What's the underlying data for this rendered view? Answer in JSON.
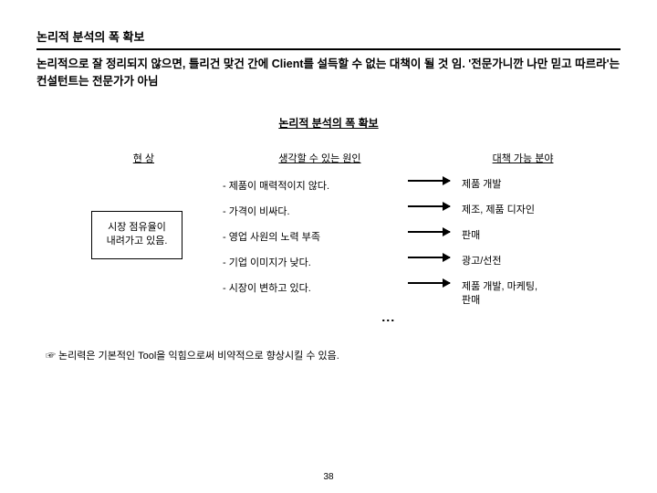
{
  "title": "논리적 분석의 폭 확보",
  "subtitle": "논리적으로 잘 정리되지 않으면, 틀리건 맞건 간에 Client를 설득할 수 없는 대책이 될 것 임. '전문가니깐 나만 믿고 따르라'는 컨설턴트는 전문가가 아님",
  "sectionTitle": "논리적 분석의 폭 확보",
  "columns": {
    "left": "현  상",
    "mid": "생각할 수 있는 원인",
    "right": "대책 가능 분야"
  },
  "leftBox": "시장 점유율이\n내려가고 있음.",
  "rows": [
    {
      "cause": "- 제품이 매력적이지 않다.",
      "target": "제품 개발"
    },
    {
      "cause": "- 가격이 비싸다.",
      "target": "제조, 제품 디자인"
    },
    {
      "cause": "- 영업 사원의 노력 부족",
      "target": "판매"
    },
    {
      "cause": "- 기업 이미지가 낮다.",
      "target": "광고/선전"
    },
    {
      "cause": "- 시장이 변하고 있다.",
      "target": "제품 개발, 마케팅,\n판매"
    }
  ],
  "footnote": "☞  논리력은 기본적인 Tool을 익힘으로써 비약적으로 향상시킬 수 있음.",
  "pageNumber": "38"
}
